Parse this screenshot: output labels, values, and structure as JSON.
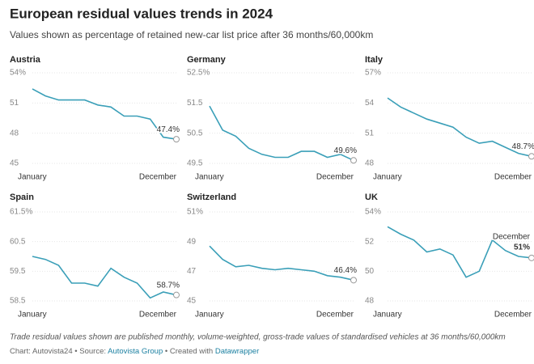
{
  "title": "European residual values trends in 2024",
  "subtitle": "Values shown as percentage of retained new-car list price after 36 months/60,000km",
  "note": "Trade residual values shown are published monthly, volume-weighted, gross-trade values of standardised vehicles at 36 months/60,000km",
  "source": {
    "chart": "Chart: Autovista24",
    "sep1": "•",
    "source_label": "Source:",
    "source": "Autovista Group",
    "sep2": "•",
    "created": "Created with",
    "tool": "Datawrapper"
  },
  "chart_data": [
    {
      "type": "line",
      "title": "Austria",
      "color": "#3a9fb8",
      "categories": [
        "January",
        null,
        null,
        null,
        null,
        null,
        null,
        null,
        null,
        null,
        null,
        "December"
      ],
      "values": [
        52.4,
        51.7,
        51.3,
        51.3,
        51.3,
        50.8,
        50.6,
        49.7,
        49.7,
        49.4,
        47.6,
        47.4
      ],
      "value_labels": [
        null,
        null,
        null,
        null,
        null,
        null,
        null,
        null,
        null,
        null,
        null,
        "47.4%"
      ],
      "ylim": [
        45,
        54
      ],
      "yticks": [
        45,
        48,
        51,
        {
          "value": 54,
          "label": "54%"
        }
      ],
      "grid": true
    },
    {
      "type": "line",
      "title": "Germany",
      "color": "#3a9fb8",
      "categories": [
        "January",
        null,
        null,
        null,
        null,
        null,
        null,
        null,
        null,
        null,
        null,
        "December"
      ],
      "values": [
        51.4,
        50.6,
        50.4,
        50.0,
        49.8,
        49.7,
        49.7,
        49.9,
        49.9,
        49.7,
        49.8,
        49.6
      ],
      "value_labels": [
        null,
        null,
        null,
        null,
        null,
        null,
        null,
        null,
        null,
        null,
        null,
        "49.6%"
      ],
      "ylim": [
        49.5,
        52.5
      ],
      "yticks": [
        49.5,
        50.5,
        51.5,
        {
          "value": 52.5,
          "label": "52.5%"
        }
      ],
      "grid": true
    },
    {
      "type": "line",
      "title": "Italy",
      "color": "#3a9fb8",
      "categories": [
        "January",
        null,
        null,
        null,
        null,
        null,
        null,
        null,
        null,
        null,
        null,
        "December"
      ],
      "values": [
        54.5,
        53.6,
        53.0,
        52.4,
        52.0,
        51.6,
        50.6,
        50.0,
        50.2,
        49.6,
        49.0,
        48.7
      ],
      "value_labels": [
        null,
        null,
        null,
        null,
        null,
        null,
        null,
        null,
        null,
        null,
        null,
        "48.7%"
      ],
      "ylim": [
        48,
        57
      ],
      "yticks": [
        48,
        51,
        54,
        {
          "value": 57,
          "label": "57%"
        }
      ],
      "grid": true
    },
    {
      "type": "line",
      "title": "Spain",
      "color": "#3a9fb8",
      "categories": [
        "January",
        null,
        null,
        null,
        null,
        null,
        null,
        null,
        null,
        null,
        null,
        "December"
      ],
      "values": [
        60.0,
        59.9,
        59.7,
        59.1,
        59.1,
        59.0,
        59.6,
        59.3,
        59.1,
        58.6,
        58.8,
        58.7
      ],
      "value_labels": [
        null,
        null,
        null,
        null,
        null,
        null,
        null,
        null,
        null,
        null,
        null,
        "58.7%"
      ],
      "ylim": [
        58.5,
        61.5
      ],
      "yticks": [
        58.5,
        59.5,
        60.5,
        {
          "value": 61.5,
          "label": "61.5%"
        }
      ],
      "grid": true
    },
    {
      "type": "line",
      "title": "Switzerland",
      "color": "#3a9fb8",
      "categories": [
        "January",
        null,
        null,
        null,
        null,
        null,
        null,
        null,
        null,
        null,
        null,
        "December"
      ],
      "values": [
        48.7,
        47.8,
        47.3,
        47.4,
        47.2,
        47.1,
        47.2,
        47.1,
        47.0,
        46.7,
        46.6,
        46.4
      ],
      "value_labels": [
        null,
        null,
        null,
        null,
        null,
        null,
        null,
        null,
        null,
        null,
        null,
        "46.4%"
      ],
      "ylim": [
        45,
        51
      ],
      "yticks": [
        45,
        47,
        49,
        {
          "value": 51,
          "label": "51%"
        }
      ],
      "grid": true
    },
    {
      "type": "line",
      "title": "UK",
      "color": "#3a9fb8",
      "categories": [
        "January",
        null,
        null,
        null,
        null,
        null,
        null,
        null,
        null,
        null,
        null,
        "December"
      ],
      "values": [
        53.0,
        52.5,
        52.1,
        51.3,
        51.5,
        51.1,
        49.6,
        50.0,
        52.1,
        51.4,
        51.0,
        50.9
      ],
      "value_labels": [
        null,
        null,
        null,
        null,
        null,
        null,
        null,
        null,
        null,
        null,
        null,
        "51%"
      ],
      "annotation": "December",
      "ylim": [
        48,
        54
      ],
      "yticks": [
        48,
        50,
        52,
        {
          "value": 54,
          "label": "54%"
        }
      ],
      "grid": true
    }
  ]
}
